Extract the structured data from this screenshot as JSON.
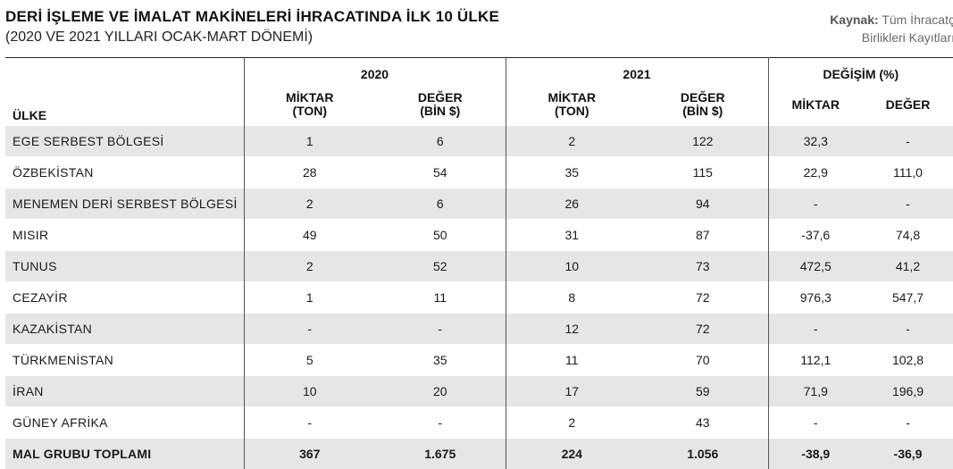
{
  "header": {
    "title": "DERİ İŞLEME VE İMALAT MAKİNELERİ İHRACATINDA İLK 10 ÜLKE",
    "subtitle": "(2020 VE 2021 YILLARI OCAK-MART DÖNEMİ)",
    "source_label": "Kaynak:",
    "source_line1": "Tüm İhracatç",
    "source_line2": "Birlikleri Kayıtları"
  },
  "table": {
    "col_country": "ÜLKE",
    "group_2020": "2020",
    "group_2021": "2021",
    "group_change": "DEĞİŞİM (%)",
    "sub_miktar_a": "MİKTAR",
    "sub_miktar_b": "(TON)",
    "sub_deger_a": "DEĞER",
    "sub_deger_b": "(BİN $)",
    "sub_change_miktar": "MİKTAR",
    "sub_change_deger": "DEĞER",
    "rows": [
      [
        "EGE SERBEST BÖLGESİ",
        "1",
        "6",
        "2",
        "122",
        "32,3",
        "-"
      ],
      [
        "ÖZBEKİSTAN",
        "28",
        "54",
        "35",
        "115",
        "22,9",
        "111,0"
      ],
      [
        "MENEMEN DERİ SERBEST BÖLGESİ",
        "2",
        "6",
        "26",
        "94",
        "-",
        "-"
      ],
      [
        "MISIR",
        "49",
        "50",
        "31",
        "87",
        "-37,6",
        "74,8"
      ],
      [
        "TUNUS",
        "2",
        "52",
        "10",
        "73",
        "472,5",
        "41,2"
      ],
      [
        "CEZAYİR",
        "1",
        "11",
        "8",
        "72",
        "976,3",
        "547,7"
      ],
      [
        "KAZAKİSTAN",
        "-",
        "-",
        "12",
        "72",
        "-",
        "-"
      ],
      [
        "TÜRKMENİSTAN",
        "5",
        "35",
        "11",
        "70",
        "112,1",
        "102,8"
      ],
      [
        "İRAN",
        "10",
        "20",
        "17",
        "59",
        "71,9",
        "196,9"
      ],
      [
        "GÜNEY AFRİKA",
        "-",
        "-",
        "2",
        "43",
        "-",
        "-"
      ],
      [
        "MAL GRUBU TOPLAMI",
        "367",
        "1.675",
        "224",
        "1.056",
        "-38,9",
        "-36,9"
      ]
    ]
  }
}
